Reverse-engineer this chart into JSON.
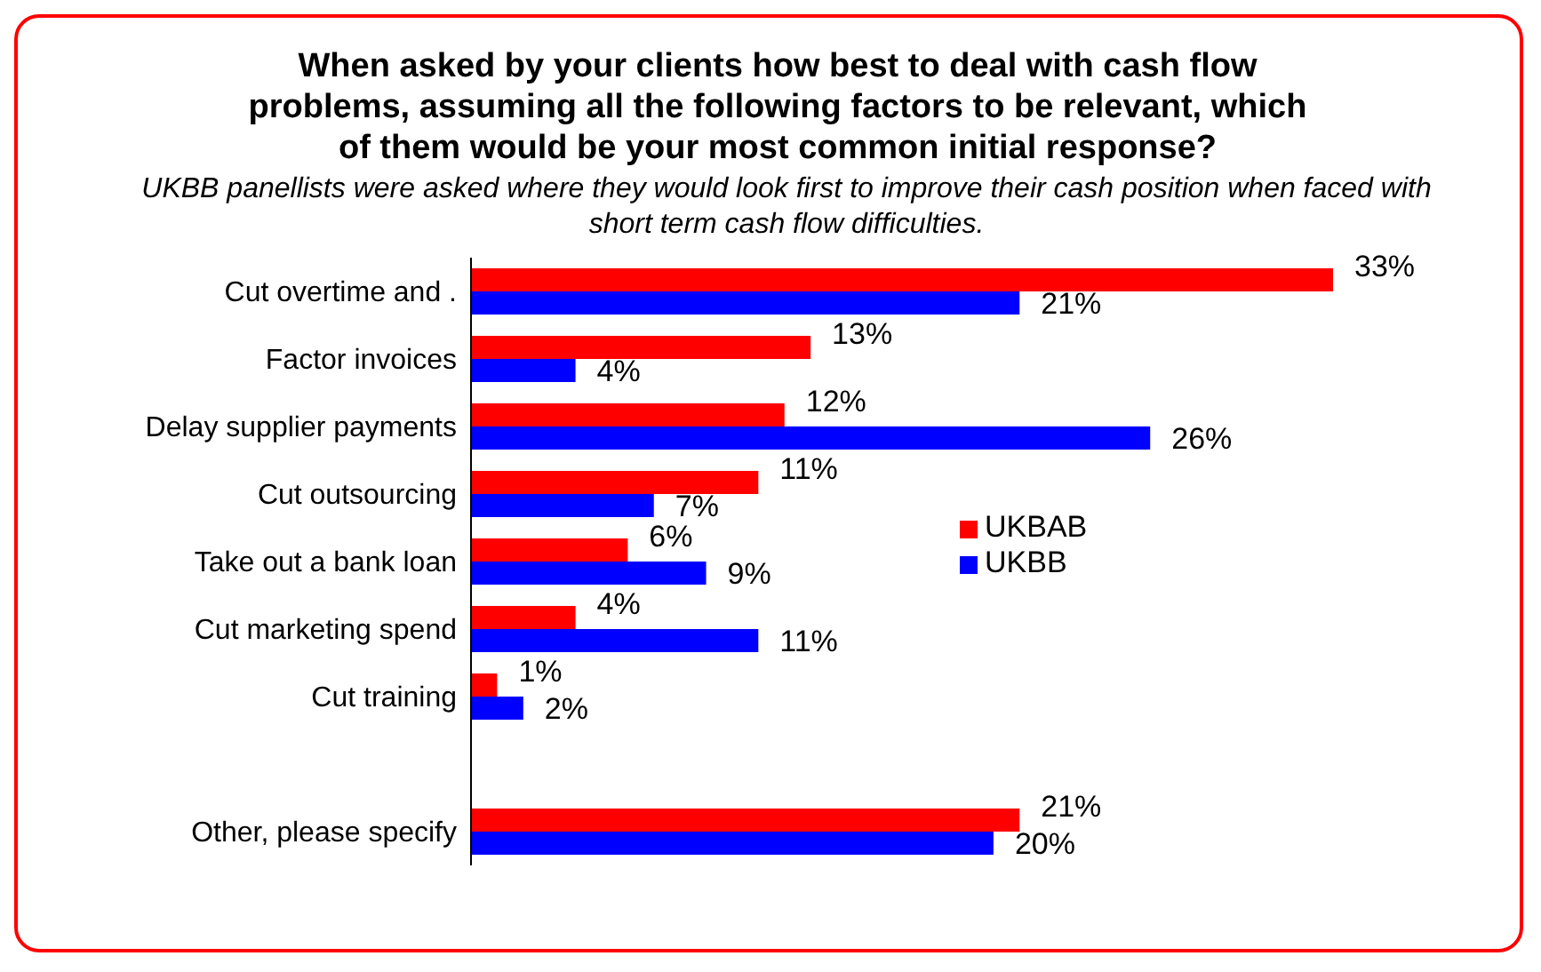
{
  "chart_data": {
    "type": "bar",
    "orientation": "horizontal",
    "title": "When asked by your clients how best to deal with cash flow problems, assuming all the following factors to be relevant, which of them would be your most common initial response?",
    "subtitle": "UKBB panellists were asked where they would look first to improve their cash position when faced with short term cash flow difficulties.",
    "categories": [
      "Cut overtime and .",
      "Factor invoices",
      "Delay supplier payments",
      "Cut outsourcing",
      "Take out a bank loan",
      "Cut marketing spend",
      "Cut training",
      null,
      "Other, please specify"
    ],
    "series": [
      {
        "name": "UKBAB",
        "color": "#ff0000",
        "values": [
          33,
          13,
          12,
          11,
          6,
          4,
          1,
          null,
          21
        ],
        "value_labels": [
          "33%",
          "13%",
          "12%",
          "11%",
          "6%",
          "4%",
          "1%",
          null,
          "21%"
        ]
      },
      {
        "name": "UKBB",
        "color": "#0000ff",
        "values": [
          21,
          4,
          26,
          7,
          9,
          11,
          2,
          null,
          20
        ],
        "value_labels": [
          "21%",
          "4%",
          "26%",
          "7%",
          "9%",
          "11%",
          "2%",
          null,
          "20%"
        ]
      }
    ],
    "legend": "right"
  }
}
